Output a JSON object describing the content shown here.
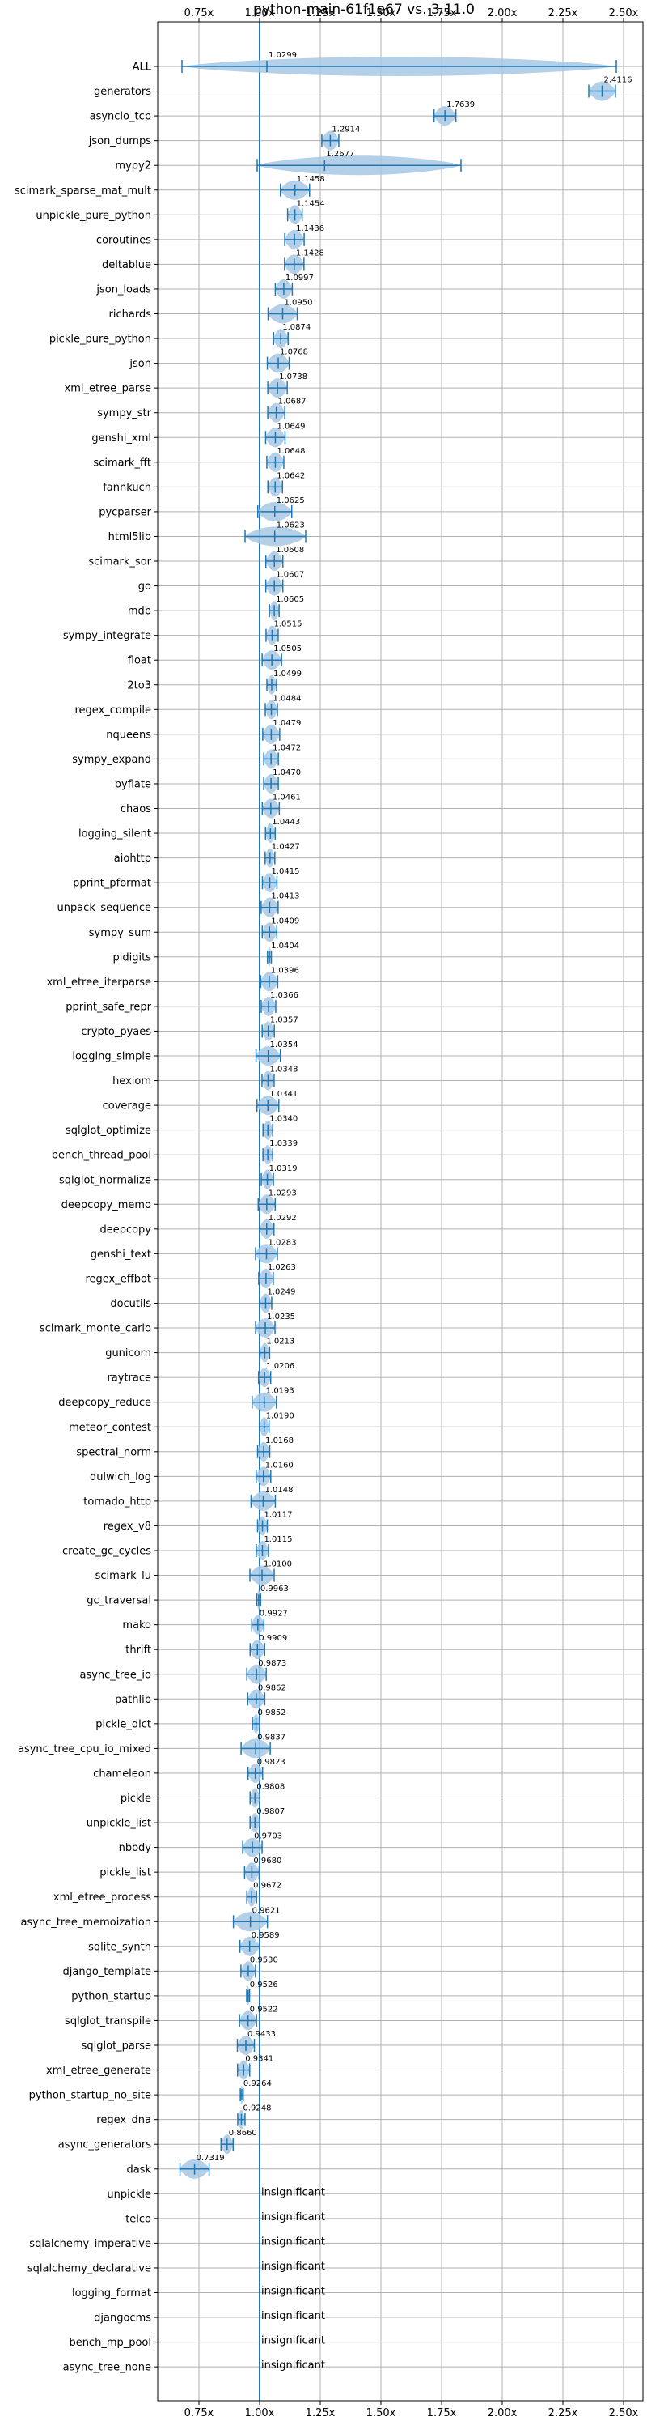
{
  "chart_data": {
    "type": "violin",
    "title": "python-main-61f1e67 vs. 3.11.0",
    "xlim": [
      0.58,
      2.58
    ],
    "xticks": [
      0.75,
      1.0,
      1.25,
      1.5,
      1.75,
      2.0,
      2.25,
      2.5
    ],
    "xtick_labels": [
      "0.75x",
      "1.00x",
      "1.25x",
      "1.50x",
      "1.75x",
      "2.00x",
      "2.25x",
      "2.50x"
    ],
    "reference_line": 1.0,
    "grid": true,
    "colors": {
      "series": "#1f77b4",
      "violin": "#a6c8e4",
      "grid": "#b0b0b0"
    },
    "benchmarks": [
      {
        "name": "ALL",
        "value": 1.0299,
        "label": "1.0299",
        "spread": 0.035,
        "range": [
          0.68,
          2.47
        ]
      },
      {
        "name": "generators",
        "value": 2.4116,
        "label": "2.4116",
        "spread": 0.055
      },
      {
        "name": "asyncio_tcp",
        "value": 1.7639,
        "label": "1.7639",
        "spread": 0.045
      },
      {
        "name": "json_dumps",
        "value": 1.2914,
        "label": "1.2914",
        "spread": 0.035
      },
      {
        "name": "mypy2",
        "value": 1.2677,
        "label": "1.2677",
        "spread": 0.17,
        "range": [
          0.99,
          1.83
        ]
      },
      {
        "name": "scimark_sparse_mat_mult",
        "value": 1.1458,
        "label": "1.1458",
        "spread": 0.06
      },
      {
        "name": "unpickle_pure_python",
        "value": 1.1454,
        "label": "1.1454",
        "spread": 0.03
      },
      {
        "name": "coroutines",
        "value": 1.1436,
        "label": "1.1436",
        "spread": 0.04
      },
      {
        "name": "deltablue",
        "value": 1.1428,
        "label": "1.1428",
        "spread": 0.04
      },
      {
        "name": "json_loads",
        "value": 1.0997,
        "label": "1.0997",
        "spread": 0.035
      },
      {
        "name": "richards",
        "value": 1.095,
        "label": "1.0950",
        "spread": 0.06
      },
      {
        "name": "pickle_pure_python",
        "value": 1.0874,
        "label": "1.0874",
        "spread": 0.03
      },
      {
        "name": "json",
        "value": 1.0768,
        "label": "1.0768",
        "spread": 0.045
      },
      {
        "name": "xml_etree_parse",
        "value": 1.0738,
        "label": "1.0738",
        "spread": 0.04
      },
      {
        "name": "sympy_str",
        "value": 1.0687,
        "label": "1.0687",
        "spread": 0.035
      },
      {
        "name": "genshi_xml",
        "value": 1.0649,
        "label": "1.0649",
        "spread": 0.04
      },
      {
        "name": "scimark_fft",
        "value": 1.0648,
        "label": "1.0648",
        "spread": 0.035
      },
      {
        "name": "fannkuch",
        "value": 1.0642,
        "label": "1.0642",
        "spread": 0.03
      },
      {
        "name": "pycparser",
        "value": 1.0625,
        "label": "1.0625",
        "spread": 0.07
      },
      {
        "name": "html5lib",
        "value": 1.0623,
        "label": "1.0623",
        "spread": 0.07,
        "range": [
          0.94,
          1.19
        ]
      },
      {
        "name": "scimark_sor",
        "value": 1.0608,
        "label": "1.0608",
        "spread": 0.035
      },
      {
        "name": "go",
        "value": 1.0607,
        "label": "1.0607",
        "spread": 0.035
      },
      {
        "name": "mdp",
        "value": 1.0605,
        "label": "1.0605",
        "spread": 0.02
      },
      {
        "name": "sympy_integrate",
        "value": 1.0515,
        "label": "1.0515",
        "spread": 0.025
      },
      {
        "name": "float",
        "value": 1.0505,
        "label": "1.0505",
        "spread": 0.04
      },
      {
        "name": "2to3",
        "value": 1.0499,
        "label": "1.0499",
        "spread": 0.02
      },
      {
        "name": "regex_compile",
        "value": 1.0484,
        "label": "1.0484",
        "spread": 0.025
      },
      {
        "name": "nqueens",
        "value": 1.0479,
        "label": "1.0479",
        "spread": 0.035
      },
      {
        "name": "sympy_expand",
        "value": 1.0472,
        "label": "1.0472",
        "spread": 0.03
      },
      {
        "name": "pyflate",
        "value": 1.047,
        "label": "1.0470",
        "spread": 0.03
      },
      {
        "name": "chaos",
        "value": 1.0461,
        "label": "1.0461",
        "spread": 0.035
      },
      {
        "name": "logging_silent",
        "value": 1.0443,
        "label": "1.0443",
        "spread": 0.02
      },
      {
        "name": "aiohttp",
        "value": 1.0427,
        "label": "1.0427",
        "spread": 0.02
      },
      {
        "name": "pprint_pformat",
        "value": 1.0415,
        "label": "1.0415",
        "spread": 0.03
      },
      {
        "name": "unpack_sequence",
        "value": 1.0413,
        "label": "1.0413",
        "spread": 0.035
      },
      {
        "name": "sympy_sum",
        "value": 1.0409,
        "label": "1.0409",
        "spread": 0.03
      },
      {
        "name": "pidigits",
        "value": 1.0404,
        "label": "1.0404",
        "spread": 0.008
      },
      {
        "name": "xml_etree_iterparse",
        "value": 1.0396,
        "label": "1.0396",
        "spread": 0.035
      },
      {
        "name": "pprint_safe_repr",
        "value": 1.0366,
        "label": "1.0366",
        "spread": 0.03
      },
      {
        "name": "crypto_pyaes",
        "value": 1.0357,
        "label": "1.0357",
        "spread": 0.025
      },
      {
        "name": "logging_simple",
        "value": 1.0354,
        "label": "1.0354",
        "spread": 0.05
      },
      {
        "name": "hexiom",
        "value": 1.0348,
        "label": "1.0348",
        "spread": 0.025
      },
      {
        "name": "coverage",
        "value": 1.0341,
        "label": "1.0341",
        "spread": 0.045
      },
      {
        "name": "sqlglot_optimize",
        "value": 1.034,
        "label": "1.0340",
        "spread": 0.02
      },
      {
        "name": "bench_thread_pool",
        "value": 1.0339,
        "label": "1.0339",
        "spread": 0.02
      },
      {
        "name": "sqlglot_normalize",
        "value": 1.0319,
        "label": "1.0319",
        "spread": 0.025
      },
      {
        "name": "deepcopy_memo",
        "value": 1.0293,
        "label": "1.0293",
        "spread": 0.035
      },
      {
        "name": "deepcopy",
        "value": 1.0292,
        "label": "1.0292",
        "spread": 0.03
      },
      {
        "name": "genshi_text",
        "value": 1.0283,
        "label": "1.0283",
        "spread": 0.045
      },
      {
        "name": "regex_effbot",
        "value": 1.0263,
        "label": "1.0263",
        "spread": 0.03
      },
      {
        "name": "docutils",
        "value": 1.0249,
        "label": "1.0249",
        "spread": 0.025
      },
      {
        "name": "scimark_monte_carlo",
        "value": 1.0235,
        "label": "1.0235",
        "spread": 0.04
      },
      {
        "name": "gunicorn",
        "value": 1.0213,
        "label": "1.0213",
        "spread": 0.02
      },
      {
        "name": "raytrace",
        "value": 1.0206,
        "label": "1.0206",
        "spread": 0.025
      },
      {
        "name": "deepcopy_reduce",
        "value": 1.0193,
        "label": "1.0193",
        "spread": 0.05
      },
      {
        "name": "meteor_contest",
        "value": 1.019,
        "label": "1.0190",
        "spread": 0.02
      },
      {
        "name": "spectral_norm",
        "value": 1.0168,
        "label": "1.0168",
        "spread": 0.025
      },
      {
        "name": "dulwich_log",
        "value": 1.016,
        "label": "1.0160",
        "spread": 0.03
      },
      {
        "name": "tornado_http",
        "value": 1.0148,
        "label": "1.0148",
        "spread": 0.05
      },
      {
        "name": "regex_v8",
        "value": 1.0117,
        "label": "1.0117",
        "spread": 0.02
      },
      {
        "name": "create_gc_cycles",
        "value": 1.0115,
        "label": "1.0115",
        "spread": 0.025
      },
      {
        "name": "scimark_lu",
        "value": 1.01,
        "label": "1.0100",
        "spread": 0.05
      },
      {
        "name": "gc_traversal",
        "value": 0.9963,
        "label": "0.9963",
        "spread": 0.008
      },
      {
        "name": "mako",
        "value": 0.9927,
        "label": "0.9927",
        "spread": 0.025
      },
      {
        "name": "thrift",
        "value": 0.9909,
        "label": "0.9909",
        "spread": 0.03
      },
      {
        "name": "async_tree_io",
        "value": 0.9873,
        "label": "0.9873",
        "spread": 0.04
      },
      {
        "name": "pathlib",
        "value": 0.9862,
        "label": "0.9862",
        "spread": 0.035
      },
      {
        "name": "pickle_dict",
        "value": 0.9852,
        "label": "0.9852",
        "spread": 0.015
      },
      {
        "name": "async_tree_cpu_io_mixed",
        "value": 0.9837,
        "label": "0.9837",
        "spread": 0.06
      },
      {
        "name": "chameleon",
        "value": 0.9823,
        "label": "0.9823",
        "spread": 0.03
      },
      {
        "name": "pickle",
        "value": 0.9808,
        "label": "0.9808",
        "spread": 0.02
      },
      {
        "name": "unpickle_list",
        "value": 0.9807,
        "label": "0.9807",
        "spread": 0.02
      },
      {
        "name": "nbody",
        "value": 0.9703,
        "label": "0.9703",
        "spread": 0.04
      },
      {
        "name": "pickle_list",
        "value": 0.968,
        "label": "0.9680",
        "spread": 0.03
      },
      {
        "name": "xml_etree_process",
        "value": 0.9672,
        "label": "0.9672",
        "spread": 0.02
      },
      {
        "name": "async_tree_memoization",
        "value": 0.9621,
        "label": "0.9621",
        "spread": 0.07
      },
      {
        "name": "sqlite_synth",
        "value": 0.9589,
        "label": "0.9589",
        "spread": 0.04
      },
      {
        "name": "django_template",
        "value": 0.953,
        "label": "0.9530",
        "spread": 0.03
      },
      {
        "name": "python_startup",
        "value": 0.9526,
        "label": "0.9526",
        "spread": 0.006
      },
      {
        "name": "sqlglot_transpile",
        "value": 0.9522,
        "label": "0.9522",
        "spread": 0.035
      },
      {
        "name": "sqlglot_parse",
        "value": 0.9433,
        "label": "0.9433",
        "spread": 0.035
      },
      {
        "name": "xml_etree_generate",
        "value": 0.9341,
        "label": "0.9341",
        "spread": 0.025
      },
      {
        "name": "python_startup_no_site",
        "value": 0.9264,
        "label": "0.9264",
        "spread": 0.006
      },
      {
        "name": "regex_dna",
        "value": 0.9248,
        "label": "0.9248",
        "spread": 0.015
      },
      {
        "name": "async_generators",
        "value": 0.866,
        "label": "0.8660",
        "spread": 0.025
      },
      {
        "name": "dask",
        "value": 0.7319,
        "label": "0.7319",
        "spread": 0.06
      },
      {
        "name": "unpickle",
        "value": null,
        "label": "insignificant"
      },
      {
        "name": "telco",
        "value": null,
        "label": "insignificant"
      },
      {
        "name": "sqlalchemy_imperative",
        "value": null,
        "label": "insignificant"
      },
      {
        "name": "sqlalchemy_declarative",
        "value": null,
        "label": "insignificant"
      },
      {
        "name": "logging_format",
        "value": null,
        "label": "insignificant"
      },
      {
        "name": "djangocms",
        "value": null,
        "label": "insignificant"
      },
      {
        "name": "bench_mp_pool",
        "value": null,
        "label": "insignificant"
      },
      {
        "name": "async_tree_none",
        "value": null,
        "label": "insignificant"
      }
    ]
  }
}
